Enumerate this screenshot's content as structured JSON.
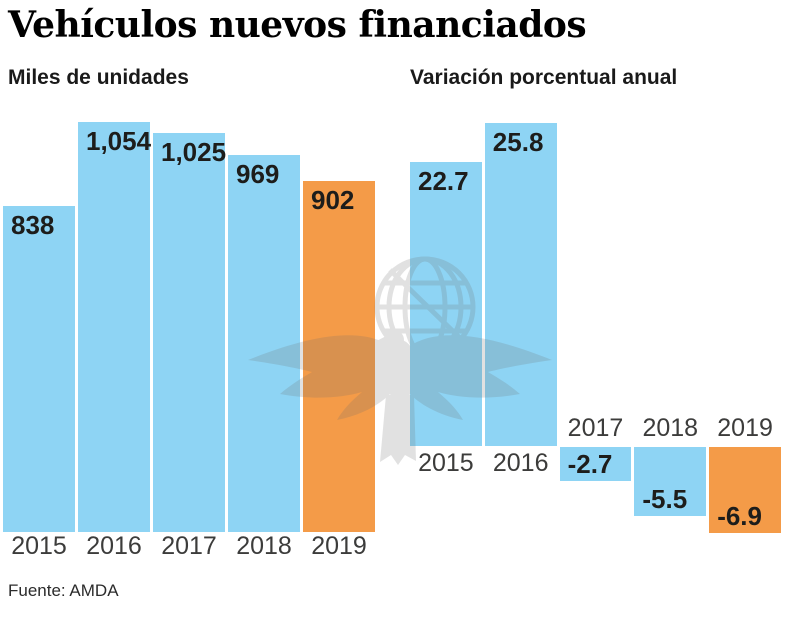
{
  "title": "Vehículos nuevos financiados",
  "source_note": "Fuente: AMDA",
  "colors": {
    "bar_blue": "#8ED4F4",
    "bar_highlight_orange": "#F49B48",
    "value_label_text": "#1D1D1B",
    "year_label_text": "#3C3C3B"
  },
  "watermark_icon": "el-universal-eagle-globe",
  "chart_data": [
    {
      "type": "bar",
      "title": "Miles de unidades",
      "categories": [
        "2015",
        "2016",
        "2017",
        "2018",
        "2019"
      ],
      "values": [
        838,
        1054,
        1025,
        969,
        902
      ],
      "value_labels": [
        "838",
        "1,054",
        "1,025",
        "969",
        "902"
      ],
      "highlight_index": 4,
      "highlight_category": "2019",
      "ylim": [
        0,
        1054
      ],
      "grid": false,
      "axis_lines": "none",
      "value_label_position": "inside-top",
      "category_label_position": "below-bars"
    },
    {
      "type": "bar",
      "title": "Variación porcentual anual",
      "categories": [
        "2015",
        "2016",
        "2017",
        "2018",
        "2019"
      ],
      "values": [
        22.7,
        25.8,
        -2.7,
        -5.5,
        -6.9
      ],
      "value_labels": [
        "22.7",
        "25.8",
        "-2.7",
        "-5.5",
        "-6.9"
      ],
      "highlight_index": 4,
      "highlight_category": "2019",
      "ylim": [
        -6.9,
        25.8
      ],
      "grid": false,
      "axis_lines": "none",
      "value_label_position": "inside-end",
      "category_label_position": "opposite-baseline"
    }
  ]
}
